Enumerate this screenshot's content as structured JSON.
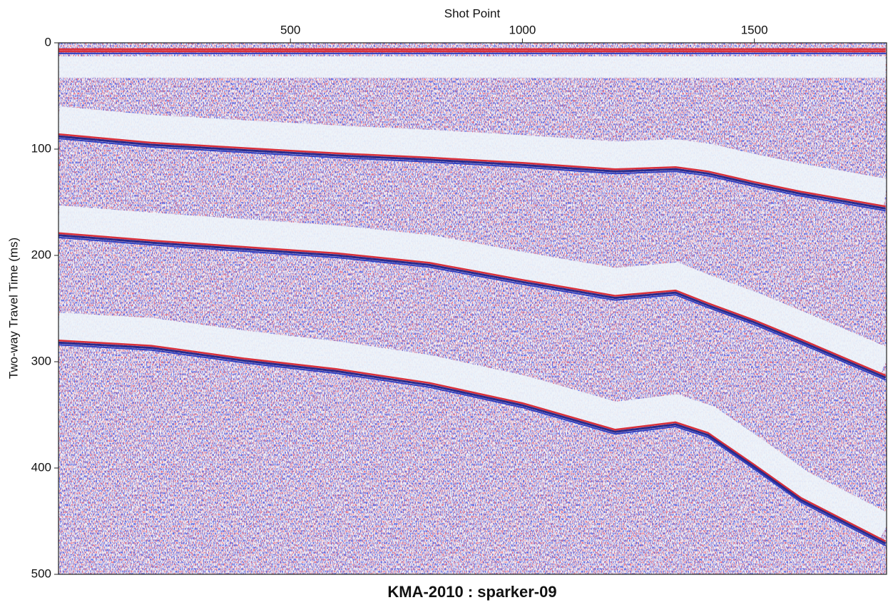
{
  "chart_data": {
    "type": "line",
    "title": "KMA-2010 : sparker-09",
    "x_label": "Shot Point",
    "y_label": "Two-way Travel Time (ms)",
    "x": [
      0,
      200,
      400,
      600,
      800,
      1000,
      1200,
      1330,
      1400,
      1500,
      1600,
      1783
    ],
    "series": [
      {
        "color": "#d8303a",
        "values": [
          8,
          8,
          8,
          8,
          8,
          8,
          8,
          8,
          8,
          8,
          8,
          8
        ]
      },
      {
        "color": "#2a2a8a",
        "values": [
          88,
          96,
          101,
          106,
          110,
          115,
          121,
          119,
          123,
          133,
          142,
          156
        ]
      },
      {
        "color": "#2a2a8a",
        "values": [
          181,
          188,
          194,
          200,
          209,
          225,
          240,
          235,
          247,
          263,
          281,
          315
        ]
      },
      {
        "color": "#2a2a8a",
        "values": [
          282,
          287,
          299,
          309,
          322,
          341,
          366,
          359,
          369,
          399,
          430,
          471
        ]
      }
    ],
    "xlim": [
      0,
      1785
    ],
    "xticks": [
      500,
      1000,
      1500
    ],
    "ylim": [
      500,
      0
    ],
    "yticks": [
      0,
      100,
      200,
      300,
      400,
      500
    ],
    "x_axis_position": "top"
  }
}
